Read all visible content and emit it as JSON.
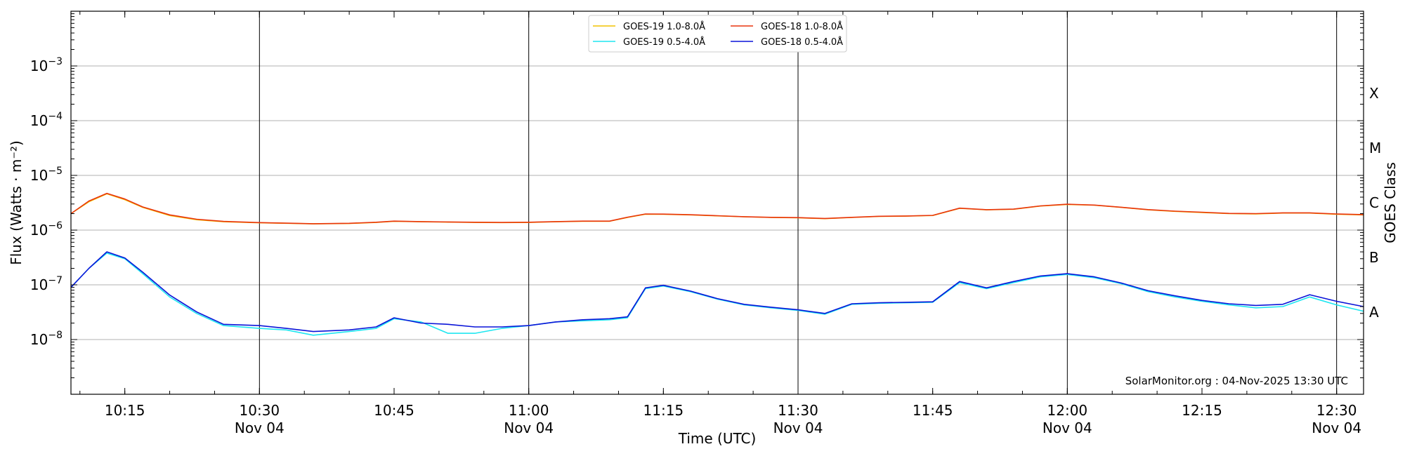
{
  "chart_data": {
    "type": "line",
    "ylabel": "Flux (Watts · m⁻²)",
    "xlabel": "Time (UTC)",
    "y2label": "GOES Class",
    "yscale": "log",
    "ylim": [
      1e-09,
      0.01
    ],
    "xlim": [
      "10:09",
      "12:33"
    ],
    "grid": "horizontal at decades, vertical at half-hours",
    "watermark": "SolarMonitor.org : 04-Nov-2025 13:30 UTC",
    "legend_position": "top-center",
    "x_ticks": [
      {
        "time": "10:15",
        "label": "10:15",
        "sub": ""
      },
      {
        "time": "10:30",
        "label": "10:30",
        "sub": "Nov 04"
      },
      {
        "time": "10:45",
        "label": "10:45",
        "sub": ""
      },
      {
        "time": "11:00",
        "label": "11:00",
        "sub": "Nov 04"
      },
      {
        "time": "11:15",
        "label": "11:15",
        "sub": ""
      },
      {
        "time": "11:30",
        "label": "11:30",
        "sub": "Nov 04"
      },
      {
        "time": "11:45",
        "label": "11:45",
        "sub": ""
      },
      {
        "time": "12:00",
        "label": "12:00",
        "sub": "Nov 04"
      },
      {
        "time": "12:15",
        "label": "12:15",
        "sub": ""
      },
      {
        "time": "12:30",
        "label": "12:30",
        "sub": "Nov 04"
      }
    ],
    "y_ticks": [
      {
        "exp": -8,
        "label": "10",
        "sup": "−8"
      },
      {
        "exp": -7,
        "label": "10",
        "sup": "−7"
      },
      {
        "exp": -6,
        "label": "10",
        "sup": "−6"
      },
      {
        "exp": -5,
        "label": "10",
        "sup": "−5"
      },
      {
        "exp": -4,
        "label": "10",
        "sup": "−4"
      },
      {
        "exp": -3,
        "label": "10",
        "sup": "−3"
      }
    ],
    "goes_classes": [
      {
        "label": "A",
        "exp": -7.5
      },
      {
        "label": "B",
        "exp": -6.5
      },
      {
        "label": "C",
        "exp": -5.5
      },
      {
        "label": "M",
        "exp": -4.5
      },
      {
        "label": "X",
        "exp": -3.5
      }
    ],
    "x": [
      "10:09",
      "10:11",
      "10:13",
      "10:15",
      "10:17",
      "10:20",
      "10:23",
      "10:26",
      "10:30",
      "10:33",
      "10:36",
      "10:40",
      "10:43",
      "10:45",
      "10:48",
      "10:51",
      "10:54",
      "10:57",
      "11:00",
      "11:03",
      "11:06",
      "11:09",
      "11:11",
      "11:13",
      "11:15",
      "11:18",
      "11:21",
      "11:24",
      "11:27",
      "11:30",
      "11:33",
      "11:36",
      "11:39",
      "11:42",
      "11:45",
      "11:48",
      "11:51",
      "11:54",
      "11:57",
      "12:00",
      "12:03",
      "12:06",
      "12:09",
      "12:12",
      "12:15",
      "12:18",
      "12:21",
      "12:24",
      "12:27",
      "12:30",
      "12:33"
    ],
    "series": [
      {
        "name": "GOES-19 1.0-8.0Å",
        "color": "#f2c200",
        "values": [
          2e-06,
          3.3e-06,
          4.6e-06,
          3.6e-06,
          2.6e-06,
          1.85e-06,
          1.55e-06,
          1.42e-06,
          1.36e-06,
          1.33e-06,
          1.3e-06,
          1.32e-06,
          1.38e-06,
          1.45e-06,
          1.42e-06,
          1.4e-06,
          1.38e-06,
          1.37e-06,
          1.38e-06,
          1.42e-06,
          1.45e-06,
          1.45e-06,
          1.7e-06,
          1.95e-06,
          1.95e-06,
          1.9e-06,
          1.82e-06,
          1.75e-06,
          1.7e-06,
          1.68e-06,
          1.62e-06,
          1.7e-06,
          1.78e-06,
          1.8e-06,
          1.85e-06,
          2.5e-06,
          2.35e-06,
          2.4e-06,
          2.75e-06,
          2.95e-06,
          2.85e-06,
          2.6e-06,
          2.35e-06,
          2.2e-06,
          2.1e-06,
          2e-06,
          1.98e-06,
          2.05e-06,
          2.05e-06,
          1.95e-06,
          1.9e-06
        ]
      },
      {
        "name": "GOES-18 1.0-8.0Å",
        "color": "#e8350f",
        "values": [
          2e-06,
          3.4e-06,
          4.7e-06,
          3.7e-06,
          2.65e-06,
          1.9e-06,
          1.58e-06,
          1.44e-06,
          1.37e-06,
          1.34e-06,
          1.31e-06,
          1.33e-06,
          1.39e-06,
          1.46e-06,
          1.43e-06,
          1.41e-06,
          1.39e-06,
          1.38e-06,
          1.39e-06,
          1.43e-06,
          1.46e-06,
          1.46e-06,
          1.72e-06,
          1.97e-06,
          1.96e-06,
          1.91e-06,
          1.83e-06,
          1.76e-06,
          1.71e-06,
          1.69e-06,
          1.63e-06,
          1.71e-06,
          1.79e-06,
          1.81e-06,
          1.86e-06,
          2.52e-06,
          2.36e-06,
          2.42e-06,
          2.77e-06,
          2.97e-06,
          2.87e-06,
          2.62e-06,
          2.37e-06,
          2.22e-06,
          2.12e-06,
          2.02e-06,
          2e-06,
          2.07e-06,
          2.07e-06,
          1.97e-06,
          1.92e-06
        ]
      },
      {
        "name": "GOES-19 0.5-4.0Å",
        "color": "#1ee6f0",
        "values": [
          9e-08,
          2e-07,
          3.8e-07,
          3e-07,
          1.6e-07,
          6e-08,
          3e-08,
          1.8e-08,
          1.6e-08,
          1.5e-08,
          1.2e-08,
          1.4e-08,
          1.6e-08,
          2.4e-08,
          2.1e-08,
          1.3e-08,
          1.3e-08,
          1.6e-08,
          1.8e-08,
          2.1e-08,
          2.2e-08,
          2.3e-08,
          2.5e-08,
          8.5e-08,
          9.5e-08,
          7.5e-08,
          5.5e-08,
          4.3e-08,
          3.8e-08,
          3.4e-08,
          2.9e-08,
          4.4e-08,
          4.6e-08,
          4.7e-08,
          4.8e-08,
          1.1e-07,
          8.5e-08,
          1.1e-07,
          1.4e-07,
          1.55e-07,
          1.35e-07,
          1.05e-07,
          7.5e-08,
          6e-08,
          5e-08,
          4.3e-08,
          3.8e-08,
          4e-08,
          6e-08,
          4.3e-08,
          3.3e-08
        ]
      },
      {
        "name": "GOES-18 0.5-4.0Å",
        "color": "#0a14d8",
        "values": [
          9e-08,
          2e-07,
          4e-07,
          3.1e-07,
          1.7e-07,
          6.5e-08,
          3.2e-08,
          1.9e-08,
          1.8e-08,
          1.6e-08,
          1.4e-08,
          1.5e-08,
          1.7e-08,
          2.5e-08,
          2e-08,
          1.9e-08,
          1.7e-08,
          1.7e-08,
          1.8e-08,
          2.1e-08,
          2.3e-08,
          2.4e-08,
          2.6e-08,
          8.8e-08,
          9.8e-08,
          7.7e-08,
          5.6e-08,
          4.4e-08,
          3.9e-08,
          3.5e-08,
          3e-08,
          4.5e-08,
          4.7e-08,
          4.8e-08,
          4.9e-08,
          1.15e-07,
          8.8e-08,
          1.15e-07,
          1.45e-07,
          1.6e-07,
          1.4e-07,
          1.08e-07,
          7.8e-08,
          6.3e-08,
          5.2e-08,
          4.5e-08,
          4.2e-08,
          4.4e-08,
          6.6e-08,
          5e-08,
          4e-08
        ]
      }
    ],
    "legend_order": [
      0,
      2,
      1,
      3
    ]
  }
}
